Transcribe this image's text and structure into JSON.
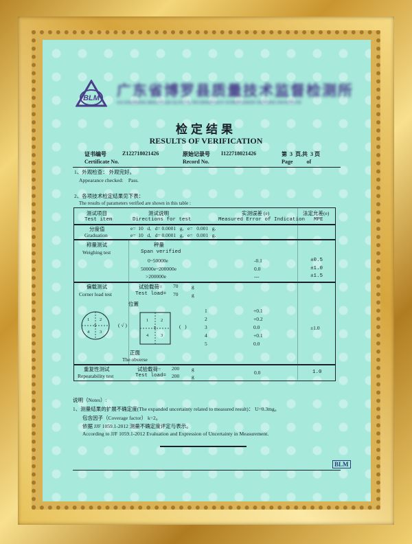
{
  "header": {
    "institute_cn": "广东省博罗县质量技术监督检测所",
    "institute_en": "GUANGDONG BOLUO QUALITY & TECHNOLOGY SUPERVISION TESTING INSTITUTE",
    "logo_text": "BLM",
    "title_cn": "检定结果",
    "title_en": "RESULTS OF VERIFICATION"
  },
  "meta": {
    "cert_label_cn": "证书编号",
    "cert_label_en": "Certificate No.",
    "cert_no": "Z122718021426",
    "record_label_cn": "原始记录号",
    "record_label_en": "Record No.",
    "record_no": "I122718021426",
    "page_cn": "第  3  页,共  3 页",
    "page_en": "Page          of"
  },
  "section1": {
    "cn": "1、外观检查：  外观完好。",
    "en": "Appearance checked:    Pass."
  },
  "section2": {
    "cn": "2、各项技术检定结果见下表：",
    "en": "The results of parameters verified are shown in this table :"
  },
  "table": {
    "headers": {
      "item_cn": "测试项目",
      "item_en": "Test item",
      "dir_cn": "测试说明",
      "dir_en": "Directions for test",
      "err_cn": "实测误差 (e)",
      "err_en": "Measured Error of Indication",
      "mpe_cn": "法定允差(e)",
      "mpe_en": "MPE"
    },
    "graduation": {
      "cn": "分度值",
      "en": "Graduation",
      "line1": "e=  10   d,   d= 0.0001   g,   e=   0.001   g.",
      "line2": "e=  10   d,   d= 0.0001   g,   e=   0.001   g."
    },
    "weighing": {
      "cn": "称量测试",
      "en": "Weighing test",
      "span_cn": "秤量",
      "span_en": "Span verified",
      "ranges": [
        {
          "range": "0~50000e",
          "error": "-0.1",
          "mpe": "±0.5"
        },
        {
          "range": "50000e~200000e",
          "error": "0.0",
          "mpe": "±1.0"
        },
        {
          "range": ">200000e",
          "error": "---",
          "mpe": "±1.5"
        }
      ]
    },
    "corner": {
      "cn": "偏载测试",
      "en": "Corner load test",
      "load_cn": "试验载荷=",
      "load_en": "Test load=",
      "load_value": "70",
      "unit": "g",
      "position_cn": "位置",
      "circle_mark": "( √ )",
      "square_mark": "(   )",
      "obverse_cn": "正面",
      "obverse_en": "The obverse",
      "quad_labels": [
        "1",
        "2",
        "5",
        "4",
        "3"
      ],
      "points": [
        {
          "pos": "1",
          "error": "+0.1"
        },
        {
          "pos": "2",
          "error": "+0.2"
        },
        {
          "pos": "3",
          "error": "0.0"
        },
        {
          "pos": "4",
          "error": "+0.1"
        },
        {
          "pos": "5",
          "error": "0.0"
        }
      ],
      "mpe": "±1.0"
    },
    "repeat": {
      "cn": "重复性测试",
      "en": "Repeatability test",
      "load_cn": "试验载荷=",
      "load_en": "Test load=",
      "load_value": "200",
      "unit": "g",
      "error": "0.0",
      "mpe": "1.0"
    }
  },
  "notes": {
    "title": "说明（Notes）:",
    "line1": "1、测量结果的扩展不确定度(The expanded uncertainty related to measured result)： U=0.3mg。",
    "line2": "包含因子（Coverage factor）  k=2。",
    "line3": "依据 JJF 1059.1-2012 测量不确定度评定与表示。",
    "line4": "According to JJF 1059.1-2012 Evaluation and Expression of Uncertainty in Measurement."
  },
  "footer_badge": "BLM",
  "colors": {
    "paper": "#a7eadb",
    "logo": "#4a3f8a",
    "frame": "#d9a83e"
  }
}
